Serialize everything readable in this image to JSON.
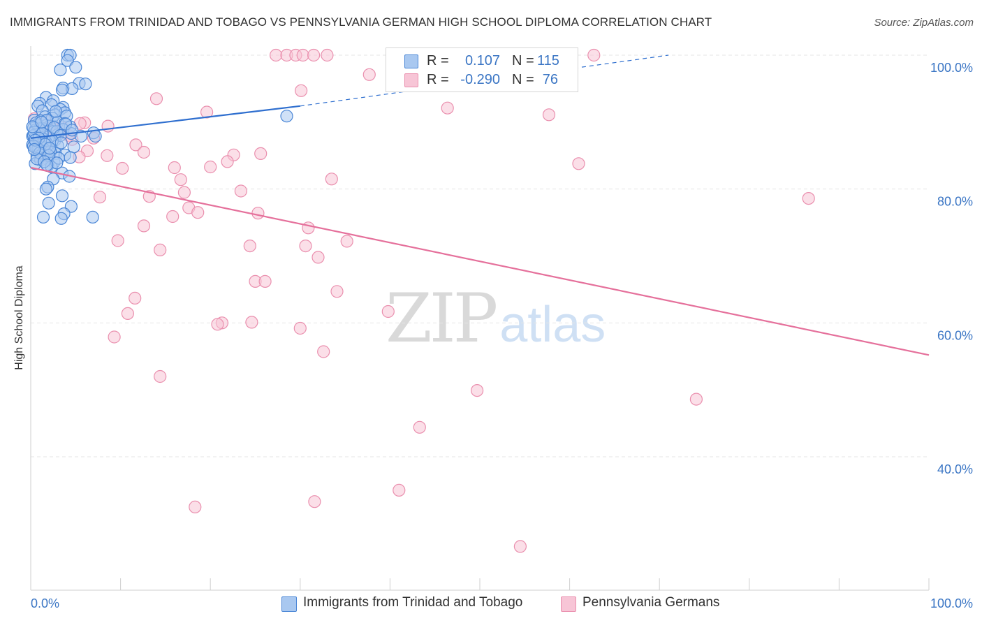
{
  "title": "IMMIGRANTS FROM TRINIDAD AND TOBAGO VS PENNSYLVANIA GERMAN HIGH SCHOOL DIPLOMA CORRELATION CHART",
  "source": "Source: ZipAtlas.com",
  "watermark": {
    "zip": "ZIP",
    "atlas": "atlas"
  },
  "colors": {
    "blue_fill": "#a9c8f0",
    "blue_stroke": "#4a86d6",
    "blue_line": "#2f6fcf",
    "pink_fill": "#f7c5d6",
    "pink_stroke": "#ea8fae",
    "pink_line": "#e5709b",
    "axis_text": "#3a75c4",
    "grid": "#e5e5e5"
  },
  "stats": [
    {
      "r_label": "R =",
      "r_value": "0.107",
      "n_label": "N =",
      "n_value": "115",
      "color": "#a9c8f0",
      "border": "#4a86d6"
    },
    {
      "r_label": "R =",
      "r_value": "-0.290",
      "n_label": "N =",
      "n_value": "76",
      "color": "#f7c5d6",
      "border": "#ea8fae"
    }
  ],
  "legend": [
    {
      "label": "Immigrants from Trinidad and Tobago",
      "color": "#a9c8f0",
      "border": "#4a86d6"
    },
    {
      "label": "Pennsylvania Germans",
      "color": "#f7c5d6",
      "border": "#ea8fae"
    }
  ],
  "chart_data": {
    "type": "scatter",
    "title": "IMMIGRANTS FROM TRINIDAD AND TOBAGO VS PENNSYLVANIA GERMAN HIGH SCHOOL DIPLOMA CORRELATION CHART",
    "xlabel": "",
    "ylabel": "High School Diploma",
    "xlim": [
      0,
      100
    ],
    "ylim": [
      18,
      102
    ],
    "x_ticks": [
      "0.0%",
      "100.0%"
    ],
    "y_ticks": [
      {
        "value": 100,
        "label": "100.0%"
      },
      {
        "value": 80,
        "label": "80.0%"
      },
      {
        "value": 60,
        "label": "60.0%"
      },
      {
        "value": 40,
        "label": "40.0%"
      }
    ],
    "grid": true,
    "series": [
      {
        "name": "Immigrants from Trinidad and Tobago",
        "trend": {
          "x0": 0,
          "y0": 87.6,
          "x1": 30,
          "y1": 92.4,
          "dash_x1": 71,
          "dash_y1": 100
        },
        "points": [
          [
            4.1,
            100
          ],
          [
            4.4,
            100
          ],
          [
            4.1,
            99.2
          ],
          [
            5.0,
            98.2
          ],
          [
            3.3,
            97.8
          ],
          [
            5.4,
            95.8
          ],
          [
            6.1,
            95.7
          ],
          [
            3.6,
            95.1
          ],
          [
            4.6,
            95.0
          ],
          [
            3.5,
            94.8
          ],
          [
            1.7,
            93.7
          ],
          [
            2.5,
            93.2
          ],
          [
            1.0,
            92.8
          ],
          [
            2.3,
            92.6
          ],
          [
            0.8,
            92.4
          ],
          [
            3.6,
            92.2
          ],
          [
            3.3,
            91.9
          ],
          [
            1.3,
            91.7
          ],
          [
            3.8,
            91.4
          ],
          [
            2.7,
            91.1
          ],
          [
            4.0,
            90.9
          ],
          [
            1.6,
            90.8
          ],
          [
            2.4,
            90.6
          ],
          [
            28.5,
            90.9
          ],
          [
            0.4,
            90.3
          ],
          [
            1.1,
            90.2
          ],
          [
            3.0,
            90.0
          ],
          [
            3.8,
            89.8
          ],
          [
            0.7,
            89.6
          ],
          [
            1.7,
            89.5
          ],
          [
            2.1,
            89.4
          ],
          [
            4.4,
            89.3
          ],
          [
            0.3,
            89.1
          ],
          [
            1.4,
            89.0
          ],
          [
            3.6,
            88.9
          ],
          [
            0.5,
            88.8
          ],
          [
            2.5,
            88.6
          ],
          [
            7.0,
            88.4
          ],
          [
            0.7,
            88.4
          ],
          [
            4.5,
            88.3
          ],
          [
            1.0,
            88.2
          ],
          [
            3.0,
            88.1
          ],
          [
            0.2,
            87.9
          ],
          [
            2.0,
            87.8
          ],
          [
            5.6,
            87.9
          ],
          [
            1.2,
            87.7
          ],
          [
            7.2,
            87.9
          ],
          [
            0.4,
            87.5
          ],
          [
            2.7,
            87.3
          ],
          [
            0.9,
            87.1
          ],
          [
            1.7,
            87.0
          ],
          [
            0.5,
            86.8
          ],
          [
            0.2,
            86.6
          ],
          [
            3.0,
            86.5
          ],
          [
            1.2,
            86.3
          ],
          [
            4.8,
            86.3
          ],
          [
            0.6,
            86.1
          ],
          [
            2.1,
            85.9
          ],
          [
            0.9,
            85.7
          ],
          [
            1.7,
            85.5
          ],
          [
            2.8,
            85.3
          ],
          [
            1.4,
            85.2
          ],
          [
            3.8,
            85.1
          ],
          [
            0.7,
            84.9
          ],
          [
            4.4,
            84.7
          ],
          [
            1.9,
            84.4
          ],
          [
            1.1,
            84.3
          ],
          [
            2.6,
            84.0
          ],
          [
            0.5,
            83.8
          ],
          [
            1.9,
            83.5
          ],
          [
            2.3,
            83.3
          ],
          [
            3.5,
            82.4
          ],
          [
            4.3,
            81.9
          ],
          [
            2.5,
            81.5
          ],
          [
            1.9,
            80.3
          ],
          [
            1.7,
            80.0
          ],
          [
            3.5,
            79.0
          ],
          [
            2.0,
            77.9
          ],
          [
            4.5,
            77.4
          ],
          [
            3.7,
            76.3
          ],
          [
            1.4,
            75.8
          ],
          [
            3.4,
            75.6
          ],
          [
            6.9,
            75.8
          ],
          [
            1.0,
            89.0
          ],
          [
            2.9,
            88.6
          ],
          [
            0.3,
            88.0
          ],
          [
            1.5,
            87.4
          ],
          [
            0.8,
            86.0
          ],
          [
            2.2,
            85.6
          ],
          [
            3.1,
            84.6
          ],
          [
            0.6,
            89.9
          ],
          [
            1.8,
            90.3
          ],
          [
            2.6,
            89.2
          ],
          [
            0.4,
            88.5
          ],
          [
            1.3,
            88.3
          ],
          [
            3.3,
            88.0
          ],
          [
            0.9,
            87.6
          ],
          [
            2.4,
            87.2
          ],
          [
            1.6,
            86.7
          ],
          [
            0.3,
            86.4
          ],
          [
            1.0,
            85.4
          ],
          [
            2.0,
            85.0
          ],
          [
            0.7,
            84.5
          ],
          [
            1.5,
            84.1
          ],
          [
            2.9,
            83.9
          ],
          [
            0.2,
            89.3
          ],
          [
            3.9,
            89.7
          ],
          [
            1.2,
            90.0
          ],
          [
            0.5,
            87.3
          ],
          [
            2.1,
            86.1
          ],
          [
            1.8,
            83.6
          ],
          [
            0.4,
            85.9
          ],
          [
            3.4,
            86.9
          ],
          [
            2.8,
            91.6
          ],
          [
            4.6,
            88.8
          ]
        ]
      },
      {
        "name": "Pennsylvania Germans",
        "trend": {
          "x0": 0,
          "y0": 83.2,
          "x1": 100,
          "y1": 55.2
        },
        "points": [
          [
            27.3,
            100
          ],
          [
            28.5,
            100
          ],
          [
            29.5,
            100
          ],
          [
            30.3,
            100
          ],
          [
            31.5,
            100
          ],
          [
            33.0,
            100
          ],
          [
            62.7,
            100
          ],
          [
            37.7,
            97.1
          ],
          [
            30.1,
            94.7
          ],
          [
            14.0,
            93.5
          ],
          [
            46.4,
            92.1
          ],
          [
            19.6,
            91.5
          ],
          [
            57.7,
            91.1
          ],
          [
            6.0,
            89.9
          ],
          [
            8.6,
            89.4
          ],
          [
            3.5,
            89.2
          ],
          [
            0.4,
            90.5
          ],
          [
            1.6,
            90.2
          ],
          [
            2.5,
            89.0
          ],
          [
            4.2,
            88.0
          ],
          [
            7.0,
            87.6
          ],
          [
            4.6,
            87.4
          ],
          [
            11.7,
            86.6
          ],
          [
            6.3,
            85.7
          ],
          [
            12.6,
            85.5
          ],
          [
            8.5,
            85.0
          ],
          [
            25.6,
            85.3
          ],
          [
            22.6,
            85.1
          ],
          [
            21.9,
            84.1
          ],
          [
            5.4,
            84.8
          ],
          [
            61.0,
            83.8
          ],
          [
            10.2,
            83.1
          ],
          [
            16.0,
            83.2
          ],
          [
            20.0,
            83.3
          ],
          [
            33.5,
            81.5
          ],
          [
            16.7,
            81.4
          ],
          [
            23.4,
            79.7
          ],
          [
            17.1,
            79.5
          ],
          [
            13.2,
            78.9
          ],
          [
            7.7,
            78.8
          ],
          [
            86.6,
            78.6
          ],
          [
            17.6,
            77.2
          ],
          [
            18.6,
            76.5
          ],
          [
            15.8,
            75.9
          ],
          [
            25.3,
            76.4
          ],
          [
            12.6,
            74.5
          ],
          [
            30.9,
            74.2
          ],
          [
            35.2,
            72.2
          ],
          [
            9.7,
            72.3
          ],
          [
            24.4,
            71.5
          ],
          [
            30.6,
            71.5
          ],
          [
            14.4,
            70.9
          ],
          [
            32.0,
            69.8
          ],
          [
            25.0,
            66.2
          ],
          [
            26.1,
            66.2
          ],
          [
            34.1,
            64.7
          ],
          [
            11.6,
            63.7
          ],
          [
            39.8,
            61.7
          ],
          [
            10.8,
            61.4
          ],
          [
            21.3,
            60.0
          ],
          [
            20.8,
            59.8
          ],
          [
            24.6,
            60.1
          ],
          [
            30.0,
            59.2
          ],
          [
            9.3,
            57.9
          ],
          [
            32.6,
            55.7
          ],
          [
            14.4,
            52.0
          ],
          [
            49.7,
            49.9
          ],
          [
            74.1,
            48.6
          ],
          [
            43.3,
            44.4
          ],
          [
            41.0,
            35.0
          ],
          [
            18.3,
            32.5
          ],
          [
            31.6,
            33.3
          ],
          [
            54.5,
            26.6
          ],
          [
            1.3,
            89.6
          ],
          [
            3.0,
            88.4
          ],
          [
            5.5,
            89.8
          ]
        ]
      }
    ]
  }
}
